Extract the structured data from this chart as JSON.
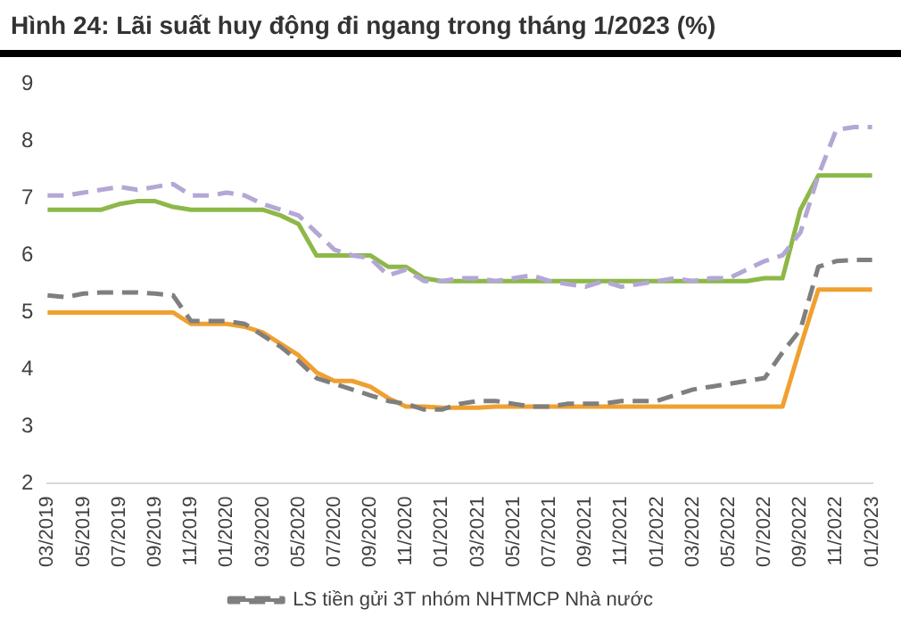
{
  "chart_data": {
    "type": "line",
    "title": "Hình 24: Lãi suất huy động đi ngang trong tháng 1/2023 (%)",
    "categories": [
      "03/2019",
      null,
      "05/2019",
      null,
      "07/2019",
      null,
      "09/2019",
      null,
      "11/2019",
      null,
      "01/2020",
      null,
      "03/2020",
      null,
      "05/2020",
      null,
      "07/2020",
      null,
      "09/2020",
      null,
      "11/2020",
      null,
      "01/2021",
      null,
      "03/2021",
      null,
      "05/2021",
      null,
      "07/2021",
      null,
      "09/2021",
      null,
      "11/2021",
      null,
      "01/2022",
      null,
      "03/2022",
      null,
      "05/2022",
      null,
      "07/2022",
      null,
      "09/2022",
      null,
      "11/2022",
      null,
      "01/2023"
    ],
    "series": [
      {
        "color": "#b4a7d6",
        "line_style": "dashed",
        "values": [
          7.05,
          7.05,
          7.1,
          7.15,
          7.2,
          7.15,
          7.2,
          7.25,
          7.05,
          7.05,
          7.1,
          7.05,
          6.9,
          6.8,
          6.7,
          6.4,
          6.1,
          6.0,
          5.95,
          5.65,
          5.75,
          5.55,
          5.55,
          5.6,
          5.6,
          5.55,
          5.6,
          5.65,
          5.55,
          5.5,
          5.45,
          5.55,
          5.45,
          5.5,
          5.55,
          5.6,
          5.55,
          5.6,
          5.6,
          5.75,
          5.9,
          6.0,
          6.4,
          7.4,
          8.2,
          8.25,
          8.25
        ]
      },
      {
        "color": "#8db848",
        "line_style": "solid",
        "values": [
          6.8,
          6.8,
          6.8,
          6.8,
          6.9,
          6.95,
          6.95,
          6.85,
          6.8,
          6.8,
          6.8,
          6.8,
          6.8,
          6.7,
          6.55,
          6.0,
          6.0,
          6.0,
          6.0,
          5.8,
          5.8,
          5.6,
          5.55,
          5.55,
          5.55,
          5.55,
          5.55,
          5.55,
          5.55,
          5.55,
          5.55,
          5.55,
          5.55,
          5.55,
          5.55,
          5.55,
          5.55,
          5.55,
          5.55,
          5.55,
          5.6,
          5.6,
          6.8,
          7.4,
          7.4,
          7.4,
          7.4
        ]
      },
      {
        "name": "LS tiền gửi 3T nhóm NHTMCP Nhà nước",
        "color": "#7f7f7f",
        "line_style": "dashed",
        "values": [
          5.3,
          5.27,
          5.33,
          5.35,
          5.35,
          5.35,
          5.33,
          5.3,
          4.85,
          4.85,
          4.85,
          4.8,
          4.6,
          4.4,
          4.15,
          3.85,
          3.75,
          3.65,
          3.55,
          3.45,
          3.4,
          3.3,
          3.3,
          3.4,
          3.45,
          3.45,
          3.4,
          3.35,
          3.35,
          3.4,
          3.4,
          3.4,
          3.45,
          3.45,
          3.45,
          3.55,
          3.65,
          3.7,
          3.75,
          3.8,
          3.85,
          4.3,
          4.7,
          5.8,
          5.9,
          5.92,
          5.92
        ]
      },
      {
        "color": "#f0a030",
        "line_style": "solid",
        "values": [
          5.0,
          5.0,
          5.0,
          5.0,
          5.0,
          5.0,
          5.0,
          5.0,
          4.8,
          4.8,
          4.8,
          4.75,
          4.65,
          4.45,
          4.25,
          3.95,
          3.8,
          3.8,
          3.7,
          3.5,
          3.35,
          3.35,
          3.33,
          3.33,
          3.33,
          3.35,
          3.35,
          3.35,
          3.35,
          3.35,
          3.35,
          3.35,
          3.35,
          3.35,
          3.35,
          3.35,
          3.35,
          3.35,
          3.35,
          3.35,
          3.35,
          3.35,
          4.4,
          5.4,
          5.4,
          5.4,
          5.4
        ]
      }
    ],
    "ylim": [
      2,
      9
    ],
    "yticks": [
      2,
      3,
      4,
      5,
      6,
      7,
      8,
      9
    ],
    "grid": false,
    "legend": "bottom",
    "marker": "none"
  }
}
